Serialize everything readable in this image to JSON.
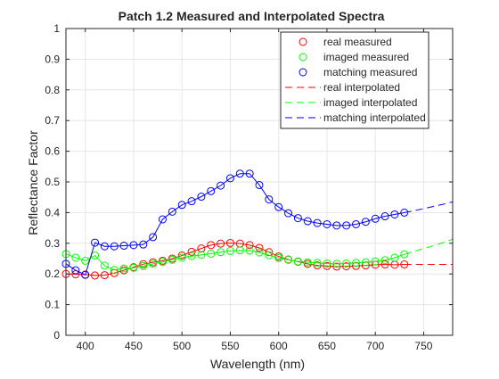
{
  "chart_data": {
    "type": "line",
    "title": "Patch 1.2 Measured and Interpolated Spectra",
    "xlabel": "Wavelength (nm)",
    "ylabel": "Reflectance Factor",
    "xlim": [
      380,
      780
    ],
    "ylim": [
      0,
      1
    ],
    "xticks": [
      400,
      450,
      500,
      550,
      600,
      650,
      700,
      750
    ],
    "yticks": [
      0,
      0.1,
      0.2,
      0.3,
      0.4,
      0.5,
      0.6,
      0.7,
      0.8,
      0.9,
      1
    ],
    "grid": true,
    "legend_position": "top-right",
    "colors": {
      "real": "#ff0000",
      "imaged": "#00ff00",
      "matching": "#0000ff"
    },
    "measured_x": [
      380,
      390,
      400,
      410,
      420,
      430,
      440,
      450,
      460,
      470,
      480,
      490,
      500,
      510,
      520,
      530,
      540,
      550,
      560,
      570,
      580,
      590,
      600,
      610,
      620,
      630,
      640,
      650,
      660,
      670,
      680,
      690,
      700,
      710,
      720,
      730
    ],
    "series": [
      {
        "name": "real measured",
        "style": "marker",
        "color": "#ff0000",
        "values": [
          0.2,
          0.199,
          0.198,
          0.195,
          0.196,
          0.203,
          0.212,
          0.222,
          0.232,
          0.238,
          0.243,
          0.25,
          0.26,
          0.272,
          0.283,
          0.294,
          0.299,
          0.301,
          0.299,
          0.294,
          0.285,
          0.271,
          0.257,
          0.247,
          0.24,
          0.233,
          0.228,
          0.226,
          0.224,
          0.225,
          0.226,
          0.228,
          0.23,
          0.231,
          0.23,
          0.231
        ]
      },
      {
        "name": "imaged measured",
        "style": "marker",
        "color": "#00ff00",
        "values": [
          0.265,
          0.253,
          0.243,
          0.26,
          0.227,
          0.213,
          0.218,
          0.22,
          0.226,
          0.233,
          0.239,
          0.246,
          0.253,
          0.258,
          0.262,
          0.266,
          0.271,
          0.275,
          0.277,
          0.276,
          0.27,
          0.261,
          0.252,
          0.246,
          0.241,
          0.238,
          0.236,
          0.234,
          0.233,
          0.234,
          0.236,
          0.238,
          0.241,
          0.245,
          0.253,
          0.264
        ]
      },
      {
        "name": "matching measured",
        "style": "marker",
        "color": "#0000ff",
        "values": [
          0.233,
          0.212,
          0.197,
          0.302,
          0.29,
          0.29,
          0.292,
          0.294,
          0.296,
          0.32,
          0.378,
          0.403,
          0.425,
          0.437,
          0.452,
          0.47,
          0.488,
          0.512,
          0.527,
          0.527,
          0.49,
          0.443,
          0.418,
          0.398,
          0.382,
          0.372,
          0.366,
          0.362,
          0.358,
          0.358,
          0.362,
          0.37,
          0.38,
          0.388,
          0.394,
          0.4
        ]
      },
      {
        "name": "real interpolated",
        "style": "dashed",
        "color": "#ff0000",
        "x": [
          730,
          740,
          750,
          760,
          770,
          780
        ],
        "values": [
          0.231,
          0.231,
          0.231,
          0.231,
          0.231,
          0.231
        ]
      },
      {
        "name": "imaged interpolated",
        "style": "dashed",
        "color": "#00ff00",
        "x": [
          730,
          740,
          750,
          760,
          770,
          780
        ],
        "values": [
          0.264,
          0.273,
          0.283,
          0.292,
          0.302,
          0.313
        ]
      },
      {
        "name": "matching interpolated",
        "style": "dashed",
        "color": "#0000ff",
        "x": [
          730,
          740,
          750,
          760,
          770,
          780
        ],
        "values": [
          0.4,
          0.406,
          0.413,
          0.42,
          0.427,
          0.435
        ]
      }
    ]
  }
}
